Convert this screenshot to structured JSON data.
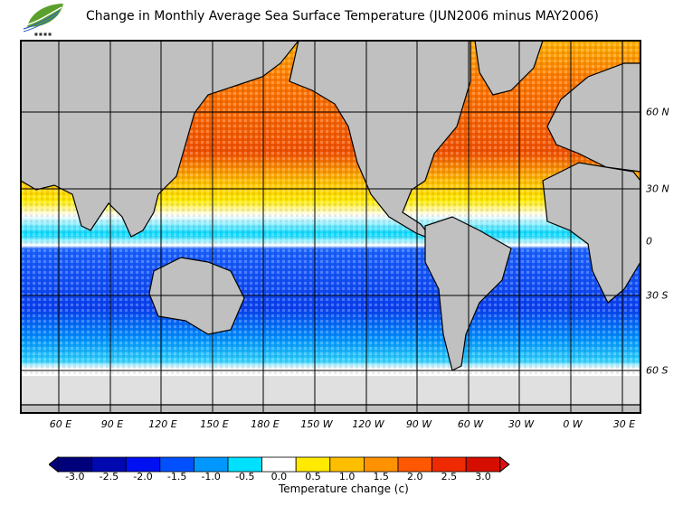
{
  "title": "Change in Monthly Average Sea Surface Temperature (JUN2006 minus MAY2006)",
  "logo": {
    "text": "HKO",
    "icon": "leaf-logo"
  },
  "map": {
    "lon_labels": [
      "60 E",
      "90 E",
      "120 E",
      "150 E",
      "180 E",
      "150 W",
      "120 W",
      "90 W",
      "60 W",
      "30 W",
      "0 W",
      "30 E"
    ],
    "lat_labels": [
      "60 N",
      "30 N",
      "0",
      "30 S",
      "60 S"
    ],
    "land_color": "#c0c0c0",
    "ice_color": "#e0e0e0"
  },
  "colorbar": {
    "label": "Temperature change  (c)",
    "ticks": [
      "-3.0",
      "-2.5",
      "-2.0",
      "-1.5",
      "-1.0",
      "-0.5",
      "0.0",
      "0.5",
      "1.0",
      "1.5",
      "2.0",
      "2.5",
      "3.0"
    ],
    "colors": [
      "#00007a",
      "#0008b0",
      "#0010f0",
      "#0050ff",
      "#0098ff",
      "#00e0ff",
      "#ffffff",
      "#ffea00",
      "#ffbf00",
      "#ff9200",
      "#ff5800",
      "#f02a00",
      "#d60e00"
    ],
    "under_color": "#000080",
    "over_color": "#e01010"
  }
}
